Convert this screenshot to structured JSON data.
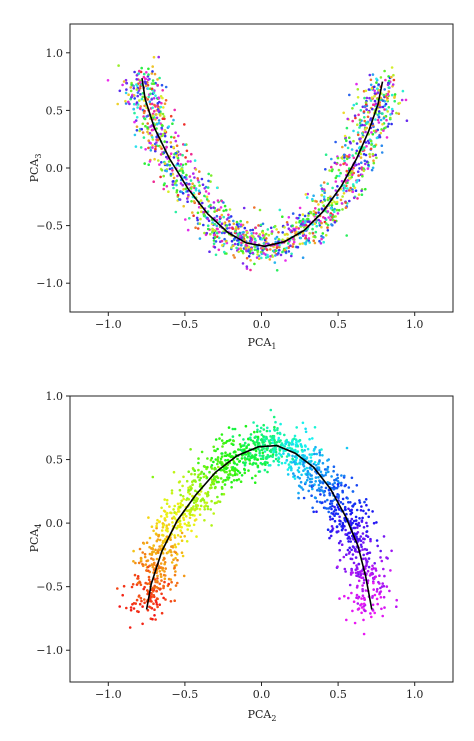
{
  "chart_data": [
    {
      "type": "scatter",
      "title": "",
      "xlabel": "PCA",
      "xlabel_sub": "1",
      "ylabel": "PCA",
      "ylabel_sub": "3",
      "xlim": [
        -1.25,
        1.25
      ],
      "ylim": [
        -1.25,
        1.25
      ],
      "xticks": [
        -1.0,
        -0.5,
        0.0,
        0.5,
        1.0
      ],
      "xtick_labels": [
        "−1.0",
        "−0.5",
        "0.0",
        "0.5",
        "1.0"
      ],
      "yticks": [
        -1.0,
        -0.5,
        0.0,
        0.5,
        1.0
      ],
      "ytick_labels": [
        "−1.0",
        "−0.5",
        "0.0",
        "0.5",
        "1.0"
      ],
      "grid": false,
      "point_coloring": "mixed hues (rainbow, unordered)",
      "scatter_sample": [
        {
          "x": -0.82,
          "y": 0.72
        },
        {
          "x": -0.78,
          "y": 0.55
        },
        {
          "x": -0.72,
          "y": 0.35
        },
        {
          "x": -0.65,
          "y": 0.12
        },
        {
          "x": -0.55,
          "y": -0.12
        },
        {
          "x": -0.42,
          "y": -0.35
        },
        {
          "x": -0.28,
          "y": -0.52
        },
        {
          "x": -0.12,
          "y": -0.62
        },
        {
          "x": 0.0,
          "y": -0.66
        },
        {
          "x": 0.14,
          "y": -0.6
        },
        {
          "x": 0.3,
          "y": -0.5
        },
        {
          "x": 0.45,
          "y": -0.32
        },
        {
          "x": 0.58,
          "y": -0.08
        },
        {
          "x": 0.68,
          "y": 0.18
        },
        {
          "x": 0.75,
          "y": 0.45
        },
        {
          "x": 0.8,
          "y": 0.68
        }
      ],
      "curve": [
        {
          "x": -0.78,
          "y": 0.78
        },
        {
          "x": -0.76,
          "y": 0.6
        },
        {
          "x": -0.7,
          "y": 0.35
        },
        {
          "x": -0.6,
          "y": 0.08
        },
        {
          "x": -0.48,
          "y": -0.18
        },
        {
          "x": -0.35,
          "y": -0.4
        },
        {
          "x": -0.22,
          "y": -0.56
        },
        {
          "x": -0.1,
          "y": -0.65
        },
        {
          "x": 0.02,
          "y": -0.68
        },
        {
          "x": 0.15,
          "y": -0.64
        },
        {
          "x": 0.28,
          "y": -0.54
        },
        {
          "x": 0.4,
          "y": -0.38
        },
        {
          "x": 0.52,
          "y": -0.16
        },
        {
          "x": 0.62,
          "y": 0.08
        },
        {
          "x": 0.7,
          "y": 0.32
        },
        {
          "x": 0.76,
          "y": 0.55
        },
        {
          "x": 0.79,
          "y": 0.75
        }
      ]
    },
    {
      "type": "scatter",
      "title": "",
      "xlabel": "PCA",
      "xlabel_sub": "2",
      "ylabel": "PCA",
      "ylabel_sub": "4",
      "xlim": [
        -1.25,
        1.25
      ],
      "ylim": [
        -1.25,
        1.0
      ],
      "xticks": [
        -1.0,
        -0.5,
        0.0,
        0.5,
        1.0
      ],
      "xtick_labels": [
        "−1.0",
        "−0.5",
        "0.0",
        "0.5",
        "1.0"
      ],
      "yticks": [
        -1.0,
        -0.5,
        0.0,
        0.5,
        1.0
      ],
      "ytick_labels": [
        "−1.0",
        "−0.5",
        "0.0",
        "0.5",
        "1.0"
      ],
      "grid": false,
      "point_coloring": "rainbow gradient along the arc (red at left end, through yellow, green, cyan, blue, to magenta at right end)",
      "scatter_sample": [
        {
          "x": -0.78,
          "y": -0.5
        },
        {
          "x": -0.72,
          "y": -0.3
        },
        {
          "x": -0.65,
          "y": -0.1
        },
        {
          "x": -0.55,
          "y": 0.12
        },
        {
          "x": -0.42,
          "y": 0.32
        },
        {
          "x": -0.28,
          "y": 0.48
        },
        {
          "x": -0.12,
          "y": 0.58
        },
        {
          "x": 0.02,
          "y": 0.62
        },
        {
          "x": 0.16,
          "y": 0.58
        },
        {
          "x": 0.3,
          "y": 0.46
        },
        {
          "x": 0.42,
          "y": 0.3
        },
        {
          "x": 0.52,
          "y": 0.12
        },
        {
          "x": 0.6,
          "y": -0.1
        },
        {
          "x": 0.66,
          "y": -0.32
        },
        {
          "x": 0.7,
          "y": -0.55
        }
      ],
      "curve": [
        {
          "x": -0.75,
          "y": -0.68
        },
        {
          "x": -0.72,
          "y": -0.48
        },
        {
          "x": -0.65,
          "y": -0.22
        },
        {
          "x": -0.55,
          "y": 0.02
        },
        {
          "x": -0.43,
          "y": 0.22
        },
        {
          "x": -0.3,
          "y": 0.4
        },
        {
          "x": -0.16,
          "y": 0.53
        },
        {
          "x": -0.02,
          "y": 0.6
        },
        {
          "x": 0.1,
          "y": 0.61
        },
        {
          "x": 0.22,
          "y": 0.55
        },
        {
          "x": 0.34,
          "y": 0.44
        },
        {
          "x": 0.45,
          "y": 0.27
        },
        {
          "x": 0.55,
          "y": 0.05
        },
        {
          "x": 0.63,
          "y": -0.18
        },
        {
          "x": 0.68,
          "y": -0.42
        },
        {
          "x": 0.72,
          "y": -0.68
        }
      ]
    }
  ]
}
